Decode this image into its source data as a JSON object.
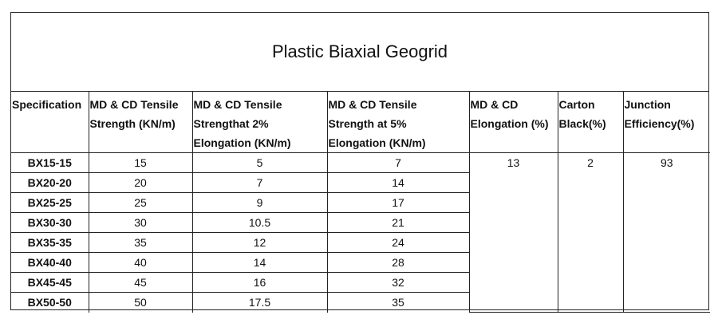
{
  "title": "Plastic Biaxial Geogrid",
  "headers": [
    "Specification",
    "MD & CD Tensile\nStrength (KN/m)",
    "MD & CD Tensile\nStrengthat 2%\nElongation (KN/m)",
    "MD & CD Tensile\nStrength at 5%\nElongation (KN/m)",
    "MD & CD\nElongation (%)",
    "Carton\nBlack(%)",
    "Junction\nEfficiency(%)"
  ],
  "rows": [
    {
      "spec": "BX15-15",
      "tensile": "15",
      "at2": "5",
      "at5": "7"
    },
    {
      "spec": "BX20-20",
      "tensile": "20",
      "at2": "7",
      "at5": "14"
    },
    {
      "spec": "BX25-25",
      "tensile": "25",
      "at2": "9",
      "at5": "17"
    },
    {
      "spec": "BX30-30",
      "tensile": "30",
      "at2": "10.5",
      "at5": "21"
    },
    {
      "spec": "BX35-35",
      "tensile": "35",
      "at2": "12",
      "at5": "24"
    },
    {
      "spec": "BX40-40",
      "tensile": "40",
      "at2": "14",
      "at5": "28"
    },
    {
      "spec": "BX45-45",
      "tensile": "45",
      "at2": "16",
      "at5": "32"
    },
    {
      "spec": "BX50-50",
      "tensile": "50",
      "at2": "17.5",
      "at5": "35"
    }
  ],
  "shared": {
    "elongation": "13",
    "carbon_black": "2",
    "junction_efficiency": "93"
  }
}
